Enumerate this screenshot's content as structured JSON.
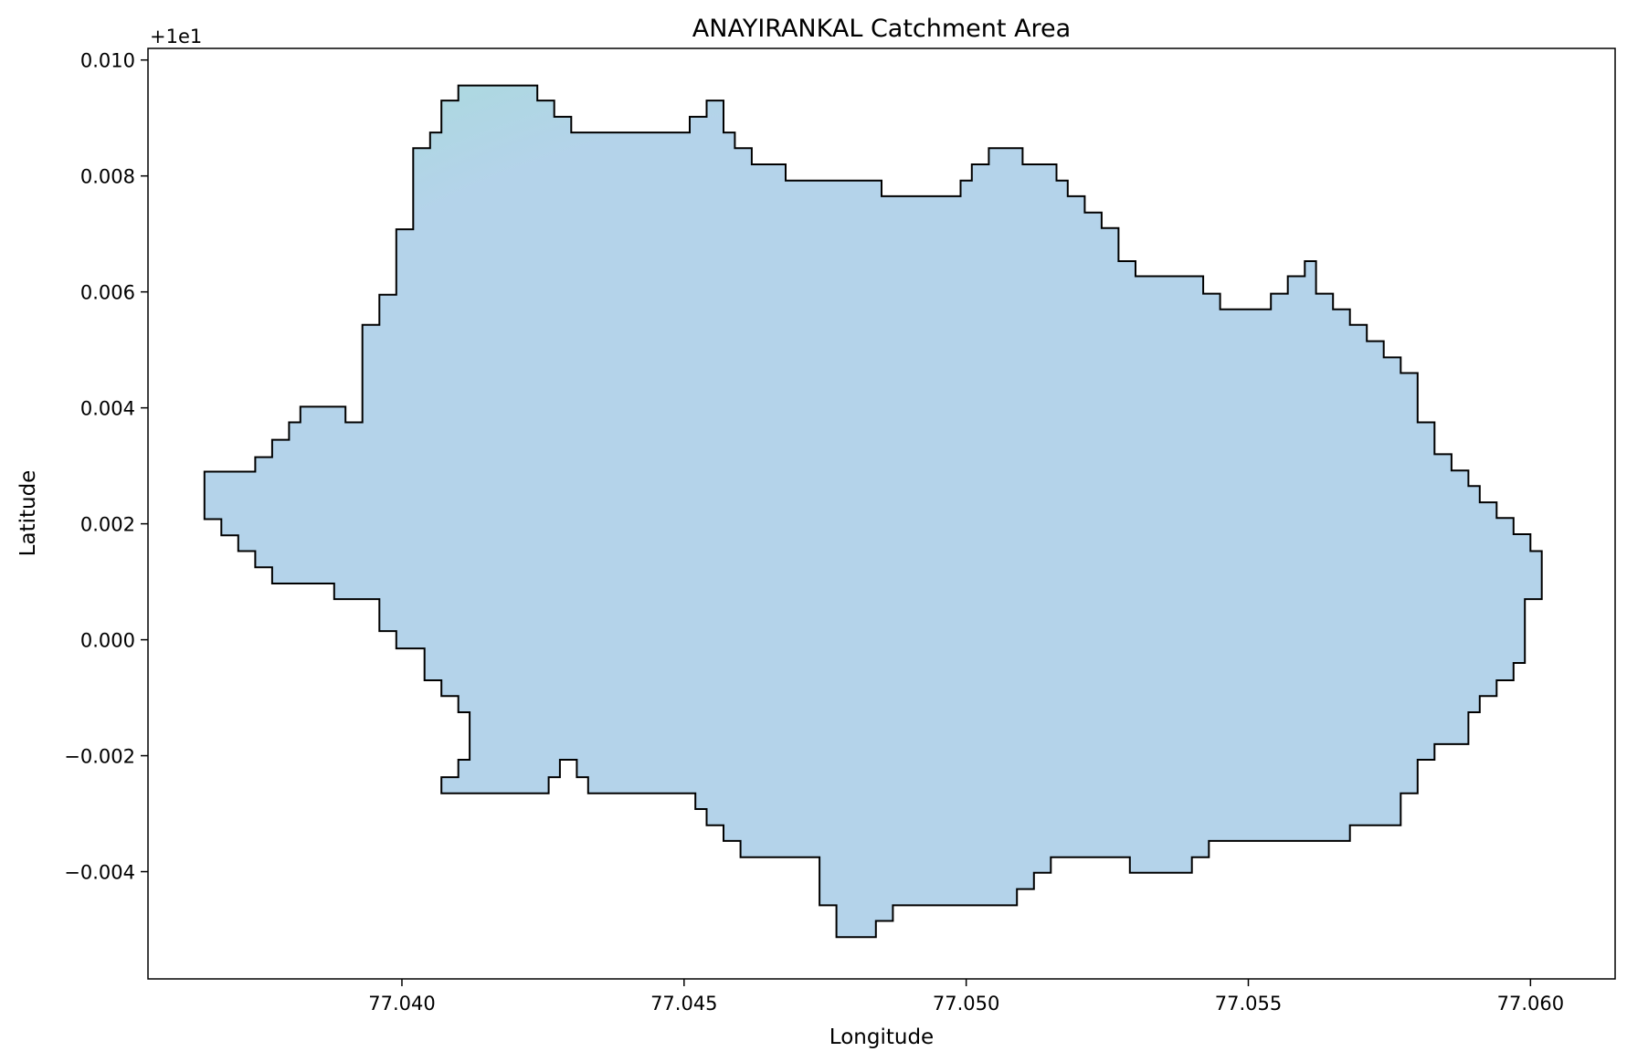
{
  "title": "ANAYIRANKAL Catchment Area",
  "offset_label": "+1e1",
  "colors": {
    "fill": "#b4d3ea",
    "fill_tint": "#acd9df",
    "edge": "#000000"
  },
  "chart_data": {
    "type": "map",
    "title": "ANAYIRANKAL Catchment Area",
    "xlabel": "Longitude",
    "ylabel": "Latitude",
    "y_offset": "+1e1",
    "xlim": [
      77.0355,
      77.0615
    ],
    "ylim": [
      -0.00585,
      0.0102
    ],
    "xticks": [
      77.04,
      77.045,
      77.05,
      77.055,
      77.06
    ],
    "xtick_labels": [
      "77.040",
      "77.045",
      "77.050",
      "77.055",
      "77.060"
    ],
    "yticks": [
      -0.004,
      -0.002,
      0.0,
      0.002,
      0.004,
      0.006,
      0.008,
      0.01
    ],
    "ytick_labels": [
      "−0.004",
      "−0.002",
      "0.000",
      "0.002",
      "0.004",
      "0.006",
      "0.008",
      "0.010"
    ],
    "grid": false,
    "legend": "none",
    "polygon": [
      [
        77.0365,
        0.0029
      ],
      [
        77.0374,
        0.0029
      ],
      [
        77.0374,
        0.00315
      ],
      [
        77.0377,
        0.00315
      ],
      [
        77.0377,
        0.00345
      ],
      [
        77.038,
        0.00345
      ],
      [
        77.038,
        0.00375
      ],
      [
        77.0382,
        0.00375
      ],
      [
        77.0382,
        0.00402
      ],
      [
        77.039,
        0.00402
      ],
      [
        77.039,
        0.00375
      ],
      [
        77.0393,
        0.00375
      ],
      [
        77.0393,
        0.00543
      ],
      [
        77.0396,
        0.00543
      ],
      [
        77.0396,
        0.00595
      ],
      [
        77.0399,
        0.00595
      ],
      [
        77.0399,
        0.00708
      ],
      [
        77.0402,
        0.00708
      ],
      [
        77.0402,
        0.00848
      ],
      [
        77.0405,
        0.00848
      ],
      [
        77.0405,
        0.00875
      ],
      [
        77.0407,
        0.00875
      ],
      [
        77.0407,
        0.0093
      ],
      [
        77.041,
        0.0093
      ],
      [
        77.041,
        0.00956
      ],
      [
        77.0424,
        0.00956
      ],
      [
        77.0424,
        0.0093
      ],
      [
        77.0427,
        0.0093
      ],
      [
        77.0427,
        0.00902
      ],
      [
        77.043,
        0.00902
      ],
      [
        77.043,
        0.00875
      ],
      [
        77.0451,
        0.00875
      ],
      [
        77.0451,
        0.00902
      ],
      [
        77.0454,
        0.00902
      ],
      [
        77.0454,
        0.0093
      ],
      [
        77.0457,
        0.0093
      ],
      [
        77.0457,
        0.00875
      ],
      [
        77.0459,
        0.00875
      ],
      [
        77.0459,
        0.00848
      ],
      [
        77.0462,
        0.00848
      ],
      [
        77.0462,
        0.0082
      ],
      [
        77.0468,
        0.0082
      ],
      [
        77.0468,
        0.00792
      ],
      [
        77.0485,
        0.00792
      ],
      [
        77.0485,
        0.00765
      ],
      [
        77.0499,
        0.00765
      ],
      [
        77.0499,
        0.00792
      ],
      [
        77.0501,
        0.00792
      ],
      [
        77.0501,
        0.0082
      ],
      [
        77.0504,
        0.0082
      ],
      [
        77.0504,
        0.00848
      ],
      [
        77.051,
        0.00848
      ],
      [
        77.051,
        0.0082
      ],
      [
        77.0516,
        0.0082
      ],
      [
        77.0516,
        0.00792
      ],
      [
        77.0518,
        0.00792
      ],
      [
        77.0518,
        0.00765
      ],
      [
        77.0521,
        0.00765
      ],
      [
        77.0521,
        0.00737
      ],
      [
        77.0524,
        0.00737
      ],
      [
        77.0524,
        0.0071
      ],
      [
        77.0527,
        0.0071
      ],
      [
        77.0527,
        0.00653
      ],
      [
        77.053,
        0.00653
      ],
      [
        77.053,
        0.00627
      ],
      [
        77.0542,
        0.00627
      ],
      [
        77.0542,
        0.00597
      ],
      [
        77.0545,
        0.00597
      ],
      [
        77.0545,
        0.0057
      ],
      [
        77.0554,
        0.0057
      ],
      [
        77.0554,
        0.00597
      ],
      [
        77.0557,
        0.00597
      ],
      [
        77.0557,
        0.00627
      ],
      [
        77.056,
        0.00627
      ],
      [
        77.056,
        0.00653
      ],
      [
        77.0562,
        0.00653
      ],
      [
        77.0562,
        0.00597
      ],
      [
        77.0565,
        0.00597
      ],
      [
        77.0565,
        0.0057
      ],
      [
        77.0568,
        0.0057
      ],
      [
        77.0568,
        0.00543
      ],
      [
        77.0571,
        0.00543
      ],
      [
        77.0571,
        0.00515
      ],
      [
        77.0574,
        0.00515
      ],
      [
        77.0574,
        0.00487
      ],
      [
        77.0577,
        0.00487
      ],
      [
        77.0577,
        0.0046
      ],
      [
        77.058,
        0.0046
      ],
      [
        77.058,
        0.00375
      ],
      [
        77.0583,
        0.00375
      ],
      [
        77.0583,
        0.0032
      ],
      [
        77.0586,
        0.0032
      ],
      [
        77.0586,
        0.00292
      ],
      [
        77.0589,
        0.00292
      ],
      [
        77.0589,
        0.00265
      ],
      [
        77.0591,
        0.00265
      ],
      [
        77.0591,
        0.00237
      ],
      [
        77.0594,
        0.00237
      ],
      [
        77.0594,
        0.0021
      ],
      [
        77.0597,
        0.0021
      ],
      [
        77.0597,
        0.00182
      ],
      [
        77.06,
        0.00182
      ],
      [
        77.06,
        0.00153
      ],
      [
        77.0602,
        0.00153
      ],
      [
        77.0602,
        0.0007
      ],
      [
        77.0599,
        0.0007
      ],
      [
        77.0599,
        -0.0004
      ],
      [
        77.0597,
        -0.0004
      ],
      [
        77.0597,
        -0.0007
      ],
      [
        77.0594,
        -0.0007
      ],
      [
        77.0594,
        -0.00097
      ],
      [
        77.0591,
        -0.00097
      ],
      [
        77.0591,
        -0.00125
      ],
      [
        77.0589,
        -0.00125
      ],
      [
        77.0589,
        -0.0018
      ],
      [
        77.0583,
        -0.0018
      ],
      [
        77.0583,
        -0.00207
      ],
      [
        77.058,
        -0.00207
      ],
      [
        77.058,
        -0.00265
      ],
      [
        77.0577,
        -0.00265
      ],
      [
        77.0577,
        -0.0032
      ],
      [
        77.0568,
        -0.0032
      ],
      [
        77.0568,
        -0.00347
      ],
      [
        77.0543,
        -0.00347
      ],
      [
        77.0543,
        -0.00375
      ],
      [
        77.054,
        -0.00375
      ],
      [
        77.054,
        -0.00402
      ],
      [
        77.0529,
        -0.00402
      ],
      [
        77.0529,
        -0.00375
      ],
      [
        77.0515,
        -0.00375
      ],
      [
        77.0515,
        -0.00402
      ],
      [
        77.0512,
        -0.00402
      ],
      [
        77.0512,
        -0.0043
      ],
      [
        77.0509,
        -0.0043
      ],
      [
        77.0509,
        -0.00458
      ],
      [
        77.0487,
        -0.00458
      ],
      [
        77.0487,
        -0.00485
      ],
      [
        77.0484,
        -0.00485
      ],
      [
        77.0484,
        -0.00513
      ],
      [
        77.0477,
        -0.00513
      ],
      [
        77.0477,
        -0.00458
      ],
      [
        77.0474,
        -0.00458
      ],
      [
        77.0474,
        -0.00375
      ],
      [
        77.046,
        -0.00375
      ],
      [
        77.046,
        -0.00347
      ],
      [
        77.0457,
        -0.00347
      ],
      [
        77.0457,
        -0.0032
      ],
      [
        77.0454,
        -0.0032
      ],
      [
        77.0454,
        -0.00292
      ],
      [
        77.0452,
        -0.00292
      ],
      [
        77.0452,
        -0.00265
      ],
      [
        77.0433,
        -0.00265
      ],
      [
        77.0433,
        -0.00237
      ],
      [
        77.0431,
        -0.00237
      ],
      [
        77.0431,
        -0.00207
      ],
      [
        77.0428,
        -0.00207
      ],
      [
        77.0428,
        -0.00237
      ],
      [
        77.0426,
        -0.00237
      ],
      [
        77.0426,
        -0.00265
      ],
      [
        77.0407,
        -0.00265
      ],
      [
        77.0407,
        -0.00237
      ],
      [
        77.041,
        -0.00237
      ],
      [
        77.041,
        -0.00207
      ],
      [
        77.0412,
        -0.00207
      ],
      [
        77.0412,
        -0.00125
      ],
      [
        77.041,
        -0.00125
      ],
      [
        77.041,
        -0.00097
      ],
      [
        77.0407,
        -0.00097
      ],
      [
        77.0407,
        -0.0007
      ],
      [
        77.0404,
        -0.0007
      ],
      [
        77.0404,
        -0.00015
      ],
      [
        77.0399,
        -0.00015
      ],
      [
        77.0399,
        0.00015
      ],
      [
        77.0396,
        0.00015
      ],
      [
        77.0396,
        0.0007
      ],
      [
        77.0388,
        0.0007
      ],
      [
        77.0388,
        0.00097
      ],
      [
        77.0377,
        0.00097
      ],
      [
        77.0377,
        0.00125
      ],
      [
        77.0374,
        0.00125
      ],
      [
        77.0374,
        0.00153
      ],
      [
        77.0371,
        0.00153
      ],
      [
        77.0371,
        0.0018
      ],
      [
        77.0368,
        0.0018
      ],
      [
        77.0368,
        0.00208
      ],
      [
        77.0365,
        0.00208
      ],
      [
        77.0365,
        0.0029
      ]
    ]
  }
}
